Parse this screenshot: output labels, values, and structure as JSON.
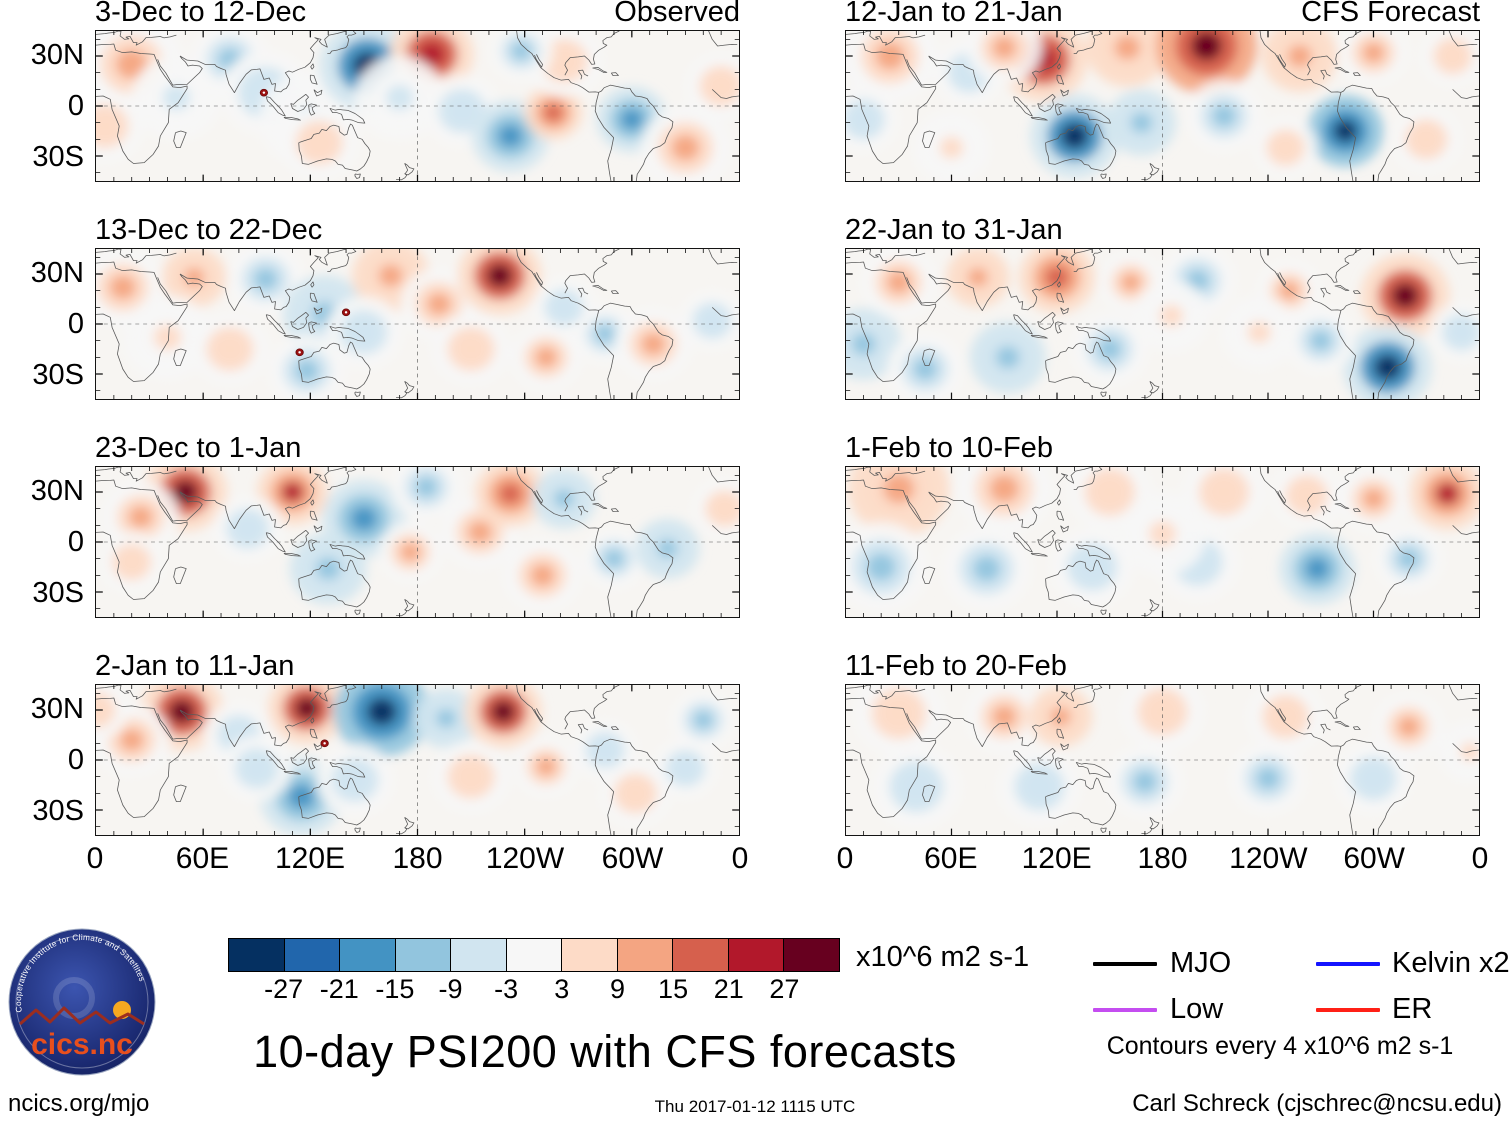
{
  "title": {
    "text": "10-day PSI200 with CFS forecasts"
  },
  "footer": {
    "left": "ncics.org/mjo",
    "center": "Thu 2017-01-12 1115 UTC",
    "right": "Carl Schreck (cjschrec@ncsu.edu)"
  },
  "logo": {
    "name": "cics.nc",
    "ring_text": "Cooperative Institute for Climate and Satellites"
  },
  "axes": {
    "x_tick_labels": [
      "0",
      "60E",
      "120E",
      "180",
      "120W",
      "60W",
      "0"
    ],
    "y_tick_labels": [
      "30N",
      "0",
      "30S"
    ]
  },
  "colorbar": {
    "colors": [
      "#053061",
      "#2166ac",
      "#4393c3",
      "#92c5de",
      "#d1e5f0",
      "#f7f7f7",
      "#fddbc7",
      "#f4a582",
      "#d6604d",
      "#b2182b",
      "#67001f"
    ],
    "tick_labels": [
      "-27",
      "-21",
      "-15",
      "-9",
      "-3",
      "3",
      "9",
      "15",
      "21",
      "27"
    ],
    "units": "x10^6 m2 s-1"
  },
  "legend": {
    "items": [
      {
        "label": "MJO",
        "color": "#000000"
      },
      {
        "label": "Kelvin x2",
        "color": "#1414ff"
      },
      {
        "label": "Low",
        "color": "#c44df0"
      },
      {
        "label": "ER",
        "color": "#ff2016"
      }
    ],
    "note": "Contours every 4 x10^6 m2 s-1"
  },
  "chart_data": {
    "type": "heatmap",
    "subtype": "filled-contour streamfunction anomaly maps (PSI200)",
    "columns": [
      "Observed",
      "CFS Forecast"
    ],
    "lon_range": [
      0,
      360
    ],
    "lat_range": [
      -45,
      45
    ],
    "levels": [
      -27,
      -21,
      -15,
      -9,
      -3,
      3,
      9,
      15,
      21,
      27
    ],
    "level_units": "x10^6 m2 s-1",
    "contour_interval": "4 x10^6 m2 s-1",
    "blobs_format": "[lon_deg, lat_deg, value_x10^6_m2_s-1, radius_deg]",
    "panels": [
      {
        "title": "3-Dec to 12-Dec",
        "corner_label": "Observed",
        "col": 0,
        "row": 0,
        "blobs": [
          [
            20,
            25,
            9,
            16
          ],
          [
            5,
            -12,
            6,
            12
          ],
          [
            45,
            5,
            -3,
            14
          ],
          [
            75,
            28,
            -9,
            12
          ],
          [
            95,
            8,
            -6,
            14
          ],
          [
            120,
            -8,
            -3,
            16
          ],
          [
            152,
            24,
            -27,
            15
          ],
          [
            188,
            31,
            24,
            13
          ],
          [
            170,
            5,
            -3,
            14
          ],
          [
            205,
            -3,
            -6,
            12
          ],
          [
            232,
            -18,
            -15,
            12
          ],
          [
            256,
            -4,
            15,
            9
          ],
          [
            262,
            27,
            6,
            12
          ],
          [
            238,
            33,
            -9,
            10
          ],
          [
            300,
            -8,
            -15,
            11
          ],
          [
            330,
            -25,
            9,
            14
          ],
          [
            350,
            12,
            6,
            11
          ],
          [
            125,
            -22,
            6,
            12
          ]
        ],
        "storms": [
          [
            94,
            8
          ]
        ]
      },
      {
        "title": "13-Dec to 22-Dec",
        "corner_label": "",
        "col": 0,
        "row": 1,
        "blobs": [
          [
            15,
            22,
            9,
            13
          ],
          [
            55,
            28,
            12,
            10
          ],
          [
            40,
            -8,
            3,
            14
          ],
          [
            95,
            27,
            -9,
            12
          ],
          [
            128,
            6,
            -12,
            13
          ],
          [
            165,
            29,
            12,
            12
          ],
          [
            150,
            -5,
            -6,
            12
          ],
          [
            192,
            12,
            9,
            12
          ],
          [
            226,
            29,
            27,
            13
          ],
          [
            210,
            -15,
            6,
            12
          ],
          [
            252,
            -20,
            9,
            11
          ],
          [
            285,
            -6,
            -9,
            10
          ],
          [
            312,
            -12,
            9,
            12
          ],
          [
            118,
            -28,
            -9,
            12
          ],
          [
            75,
            -15,
            6,
            12
          ],
          [
            345,
            2,
            -6,
            10
          ],
          [
            262,
            10,
            -6,
            10
          ]
        ],
        "storms": [
          [
            140,
            7
          ],
          [
            114,
            -17
          ]
        ]
      },
      {
        "title": "23-Dec to 1-Jan",
        "corner_label": "",
        "col": 0,
        "row": 2,
        "blobs": [
          [
            50,
            30,
            27,
            13
          ],
          [
            25,
            15,
            9,
            12
          ],
          [
            110,
            30,
            21,
            11
          ],
          [
            85,
            8,
            -6,
            11
          ],
          [
            150,
            14,
            -15,
            13
          ],
          [
            130,
            -16,
            -12,
            12
          ],
          [
            176,
            -6,
            9,
            10
          ],
          [
            215,
            6,
            9,
            12
          ],
          [
            232,
            29,
            15,
            11
          ],
          [
            262,
            26,
            -12,
            10
          ],
          [
            250,
            -20,
            9,
            12
          ],
          [
            290,
            -10,
            -9,
            10
          ],
          [
            320,
            -4,
            -12,
            10
          ],
          [
            20,
            -12,
            6,
            10
          ],
          [
            352,
            20,
            6,
            10
          ],
          [
            185,
            33,
            -9,
            11
          ]
        ],
        "storms": []
      },
      {
        "title": "2-Jan to 11-Jan",
        "corner_label": "",
        "col": 0,
        "row": 3,
        "blobs": [
          [
            48,
            29,
            27,
            13
          ],
          [
            20,
            12,
            9,
            12
          ],
          [
            80,
            15,
            -6,
            11
          ],
          [
            118,
            31,
            27,
            12
          ],
          [
            160,
            29,
            -30,
            15
          ],
          [
            196,
            25,
            -12,
            10
          ],
          [
            228,
            29,
            27,
            12
          ],
          [
            115,
            -22,
            -15,
            13
          ],
          [
            90,
            -5,
            -6,
            11
          ],
          [
            145,
            -12,
            -6,
            12
          ],
          [
            210,
            -10,
            6,
            12
          ],
          [
            252,
            -4,
            9,
            10
          ],
          [
            285,
            6,
            -6,
            10
          ],
          [
            302,
            -20,
            6,
            11
          ],
          [
            340,
            24,
            -9,
            10
          ],
          [
            330,
            -5,
            -6,
            10
          ],
          [
            0,
            30,
            6,
            10
          ]
        ],
        "storms": [
          [
            128,
            10
          ]
        ]
      },
      {
        "title": "12-Jan to 21-Jan",
        "corner_label": "CFS Forecast",
        "col": 1,
        "row": 0,
        "blobs": [
          [
            25,
            30,
            9,
            15
          ],
          [
            70,
            20,
            -6,
            11
          ],
          [
            112,
            28,
            24,
            14
          ],
          [
            90,
            35,
            9,
            12
          ],
          [
            160,
            35,
            12,
            13
          ],
          [
            205,
            36,
            30,
            16
          ],
          [
            258,
            30,
            12,
            12
          ],
          [
            300,
            32,
            9,
            11
          ],
          [
            345,
            30,
            6,
            10
          ],
          [
            130,
            -18,
            -27,
            14
          ],
          [
            168,
            -10,
            -12,
            11
          ],
          [
            215,
            -6,
            -9,
            12
          ],
          [
            284,
            -15,
            -30,
            12
          ],
          [
            250,
            -25,
            6,
            10
          ],
          [
            330,
            -20,
            6,
            11
          ],
          [
            10,
            -8,
            -6,
            11
          ],
          [
            60,
            -25,
            3,
            12
          ]
        ],
        "storms": []
      },
      {
        "title": "22-Jan to 31-Jan",
        "corner_label": "",
        "col": 1,
        "row": 1,
        "blobs": [
          [
            10,
            -12,
            -12,
            12
          ],
          [
            30,
            25,
            9,
            12
          ],
          [
            75,
            28,
            12,
            10
          ],
          [
            120,
            28,
            18,
            12
          ],
          [
            162,
            25,
            9,
            10
          ],
          [
            200,
            26,
            -9,
            12
          ],
          [
            252,
            20,
            9,
            10
          ],
          [
            318,
            17,
            27,
            14
          ],
          [
            308,
            -26,
            -27,
            14
          ],
          [
            270,
            -10,
            -9,
            11
          ],
          [
            150,
            -15,
            -9,
            12
          ],
          [
            92,
            -20,
            -12,
            12
          ],
          [
            45,
            -27,
            -9,
            12
          ],
          [
            235,
            -5,
            3,
            12
          ],
          [
            350,
            -5,
            -6,
            10
          ],
          [
            185,
            5,
            3,
            12
          ]
        ],
        "storms": []
      },
      {
        "title": "1-Feb to 10-Feb",
        "corner_label": "",
        "col": 1,
        "row": 2,
        "blobs": [
          [
            30,
            32,
            12,
            16
          ],
          [
            90,
            32,
            9,
            15
          ],
          [
            150,
            30,
            6,
            13
          ],
          [
            215,
            30,
            6,
            13
          ],
          [
            262,
            28,
            6,
            11
          ],
          [
            300,
            26,
            9,
            11
          ],
          [
            342,
            29,
            21,
            12
          ],
          [
            20,
            -15,
            -9,
            15
          ],
          [
            80,
            -16,
            -9,
            14
          ],
          [
            140,
            -15,
            -6,
            13
          ],
          [
            200,
            -12,
            -6,
            13
          ],
          [
            268,
            -16,
            -18,
            12
          ],
          [
            320,
            -10,
            -9,
            11
          ],
          [
            180,
            5,
            3,
            14
          ]
        ],
        "storms": []
      },
      {
        "title": "11-Feb to 20-Feb",
        "corner_label": "",
        "col": 1,
        "row": 3,
        "blobs": [
          [
            30,
            28,
            6,
            14
          ],
          [
            90,
            26,
            9,
            12
          ],
          [
            122,
            26,
            12,
            10
          ],
          [
            180,
            29,
            6,
            13
          ],
          [
            250,
            26,
            6,
            12
          ],
          [
            320,
            20,
            9,
            11
          ],
          [
            40,
            -16,
            -6,
            14
          ],
          [
            110,
            -16,
            -6,
            13
          ],
          [
            170,
            -13,
            -9,
            12
          ],
          [
            240,
            -11,
            -9,
            12
          ],
          [
            300,
            -11,
            -6,
            12
          ],
          [
            355,
            5,
            3,
            10
          ]
        ],
        "storms": []
      }
    ]
  }
}
